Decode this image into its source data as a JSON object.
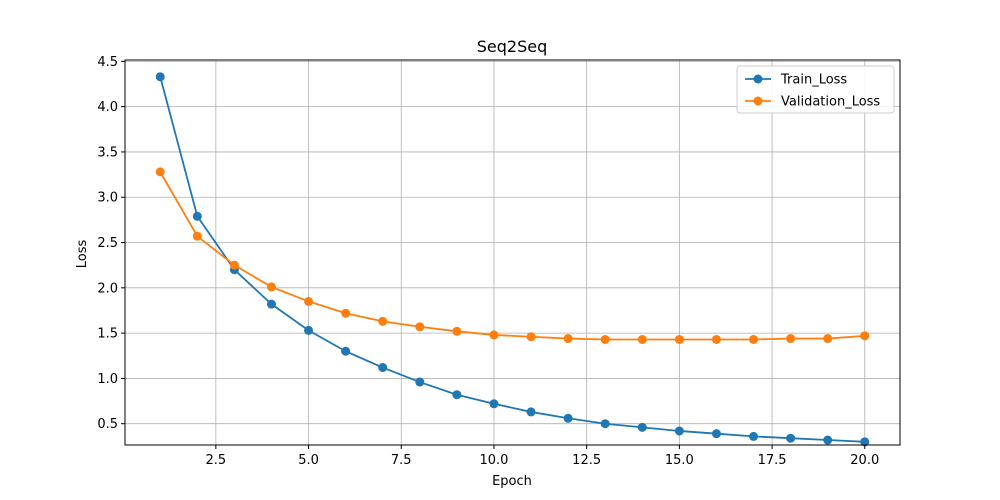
{
  "chart_data": {
    "type": "line",
    "title": "Seq2Seq",
    "xlabel": "Epoch",
    "ylabel": "Loss",
    "xlim": [
      0.05,
      20.95
    ],
    "ylim": [
      0.265,
      4.515
    ],
    "xticks": [
      2.5,
      5.0,
      7.5,
      10.0,
      12.5,
      15.0,
      17.5,
      20.0
    ],
    "xtick_labels": [
      "2.5",
      "5.0",
      "7.5",
      "10.0",
      "12.5",
      "15.0",
      "17.5",
      "20.0"
    ],
    "yticks": [
      0.5,
      1.0,
      1.5,
      2.0,
      2.5,
      3.0,
      3.5,
      4.0,
      4.5
    ],
    "ytick_labels": [
      "0.5",
      "1.0",
      "1.5",
      "2.0",
      "2.5",
      "3.0",
      "3.5",
      "4.0",
      "4.5"
    ],
    "grid": true,
    "legend_position": "top-right",
    "x": [
      1,
      2,
      3,
      4,
      5,
      6,
      7,
      8,
      9,
      10,
      11,
      12,
      13,
      14,
      15,
      16,
      17,
      18,
      19,
      20
    ],
    "series": [
      {
        "name": "Train_Loss",
        "color": "#1f77b4",
        "values": [
          4.33,
          2.79,
          2.2,
          1.82,
          1.53,
          1.3,
          1.12,
          0.96,
          0.82,
          0.72,
          0.63,
          0.56,
          0.5,
          0.46,
          0.42,
          0.39,
          0.36,
          0.34,
          0.32,
          0.3
        ]
      },
      {
        "name": "Validation_Loss",
        "color": "#ff7f0e",
        "values": [
          3.28,
          2.57,
          2.25,
          2.01,
          1.85,
          1.72,
          1.63,
          1.57,
          1.52,
          1.48,
          1.46,
          1.44,
          1.43,
          1.43,
          1.43,
          1.43,
          1.43,
          1.44,
          1.44,
          1.47
        ]
      }
    ]
  }
}
